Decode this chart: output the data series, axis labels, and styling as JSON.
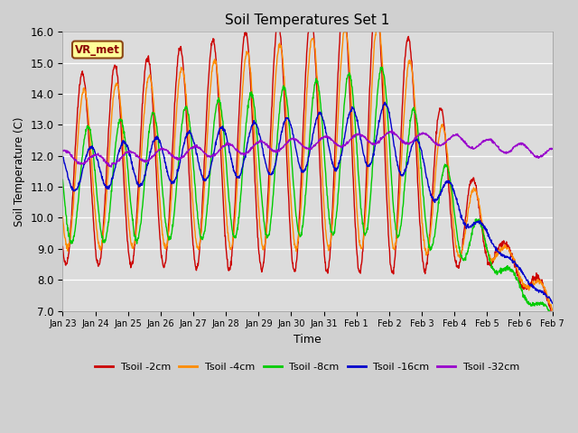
{
  "title": "Soil Temperatures Set 1",
  "xlabel": "Time",
  "ylabel": "Soil Temperature (C)",
  "ylim": [
    7.0,
    16.0
  ],
  "yticks": [
    7.0,
    8.0,
    9.0,
    10.0,
    11.0,
    12.0,
    13.0,
    14.0,
    15.0,
    16.0
  ],
  "xtick_labels": [
    "Jan 23",
    "Jan 24",
    "Jan 25",
    "Jan 26",
    "Jan 27",
    "Jan 28",
    "Jan 29",
    "Jan 30",
    "Jan 31",
    "Feb 1",
    "Feb 2",
    "Feb 3",
    "Feb 4",
    "Feb 5",
    "Feb 6",
    "Feb 7"
  ],
  "series_colors": [
    "#cc0000",
    "#ff8c00",
    "#00cc00",
    "#0000cc",
    "#9900cc"
  ],
  "series_labels": [
    "Tsoil -2cm",
    "Tsoil -4cm",
    "Tsoil -8cm",
    "Tsoil -16cm",
    "Tsoil -32cm"
  ],
  "fig_facecolor": "#d8d8d8",
  "ax_facecolor": "#e0e0e0",
  "annotation_text": "VR_met",
  "n_points": 1440,
  "days": 15
}
